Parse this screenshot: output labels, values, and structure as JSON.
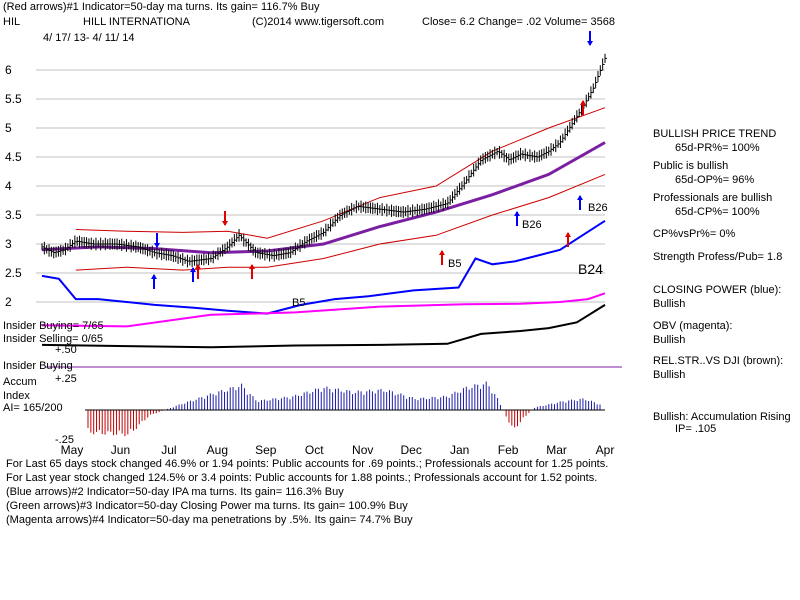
{
  "header": {
    "line1": "(Red arrows)#1 Indicator=50-day ma turns. Its gain= 116.7% Buy",
    "symbol": "HIL",
    "company": "HILL INTERNATIONA",
    "copyright": "(C)2014 www.tigersoft.com",
    "quote": "Close=  6.2  Change= .02 Volume= 3568",
    "date_range": "4/ 17/ 13-  4/ 11/ 14"
  },
  "left_labels": {
    "insider_buying_top": "Insider Buying= 7/65",
    "insider_selling": "Insider Selling= 0/65",
    "plus_50": "+.50",
    "insider_buying_mid": "Insider Buying",
    "accum": "Accum",
    "plus_25": "+.25",
    "index": "Index",
    "ai": "AI= 165/200",
    "minus_25": "-.25"
  },
  "chart_annotations": {
    "b26_upper": "B26",
    "b26_lower": "B26",
    "b5_upper": "B5",
    "b5_lower": "B5",
    "b24": "B24"
  },
  "right_panel": {
    "bullish_trend": "BULLISH PRICE TREND",
    "pr": "65d-PR%= 100%",
    "public_bullish": "Public is bullish",
    "op": "65d-OP%= 96%",
    "prof_bullish": "Professionals are bullish",
    "cp": "65d-CP%= 100%",
    "cpvspr": "CP%vsPr%=  0%",
    "strength": "Strength Profess/Pub= 1.8",
    "closing_power": "CLOSING POWER (blue):",
    "cp_bullish": "Bullish",
    "obv": "OBV (magenta):",
    "obv_bullish": "Bullish",
    "relstr": "REL.STR..VS DJI (brown):",
    "relstr_bullish": "Bullish",
    "accum_rising": "Bullish: Accumulation Rising",
    "ip": "IP=  .105"
  },
  "footer": {
    "line1": "For Last 65 days stock changed  46.9% or  1.94 points:  Public accounts for  .69 points.;  Professionals account for  1.25 points.",
    "line2": "For Last year stock changed  124.5% or  3.4 points:  Public accounts for  1.88 points.;  Professionals account for  1.52 points.",
    "line3": "(Blue arrows)#2 Indicator=50-day IPA ma turns. Its gain= 116.3% Buy",
    "line4": "(Green arrows)#3 Indicator=50-day Closing Power ma turns. Its gain= 100.9% Buy",
    "line5": "(Magenta arrows)#4 Indicator=50-day ma penetrations by .5%. Its gain= 74.7% Buy"
  },
  "colors": {
    "price": "#000000",
    "bands": "#cc0000",
    "ma": "#7b1fa2",
    "closing_power": "#0000ff",
    "obv": "#ff00ff",
    "relstr": "#000000",
    "accum_pos": "#1a1aa8",
    "accum_neg": "#c00000",
    "grid": "#c0c0c0",
    "red_arrow": "#e00000",
    "blue_arrow": "#0000ff"
  },
  "chart_data": {
    "type": "line",
    "title": "HILL INTERNATIONA",
    "x_ticks": [
      "May",
      "Jun",
      "Jul",
      "Aug",
      "Sep",
      "Oct",
      "Nov",
      "Dec",
      "Jan",
      "Feb",
      "Mar",
      "Apr"
    ],
    "y_ticks": [
      "6",
      "5.5",
      "5",
      "4.5",
      "4",
      "3.5",
      "3",
      "2.5",
      "2"
    ],
    "ylim": [
      1.75,
      6.35
    ],
    "grid": true,
    "price_close": [
      {
        "x": 0,
        "y": 2.95
      },
      {
        "x": 0.02,
        "y": 2.85
      },
      {
        "x": 0.04,
        "y": 2.9
      },
      {
        "x": 0.06,
        "y": 3.05
      },
      {
        "x": 0.09,
        "y": 3.0
      },
      {
        "x": 0.13,
        "y": 3.0
      },
      {
        "x": 0.17,
        "y": 2.95
      },
      {
        "x": 0.2,
        "y": 2.85
      },
      {
        "x": 0.23,
        "y": 2.8
      },
      {
        "x": 0.26,
        "y": 2.7
      },
      {
        "x": 0.3,
        "y": 2.75
      },
      {
        "x": 0.33,
        "y": 2.95
      },
      {
        "x": 0.35,
        "y": 3.15
      },
      {
        "x": 0.38,
        "y": 2.85
      },
      {
        "x": 0.41,
        "y": 2.8
      },
      {
        "x": 0.44,
        "y": 2.85
      },
      {
        "x": 0.47,
        "y": 3.05
      },
      {
        "x": 0.5,
        "y": 3.2
      },
      {
        "x": 0.53,
        "y": 3.5
      },
      {
        "x": 0.56,
        "y": 3.65
      },
      {
        "x": 0.6,
        "y": 3.6
      },
      {
        "x": 0.64,
        "y": 3.55
      },
      {
        "x": 0.68,
        "y": 3.6
      },
      {
        "x": 0.72,
        "y": 3.7
      },
      {
        "x": 0.75,
        "y": 4.05
      },
      {
        "x": 0.78,
        "y": 4.45
      },
      {
        "x": 0.81,
        "y": 4.6
      },
      {
        "x": 0.83,
        "y": 4.45
      },
      {
        "x": 0.85,
        "y": 4.55
      },
      {
        "x": 0.88,
        "y": 4.5
      },
      {
        "x": 0.9,
        "y": 4.6
      },
      {
        "x": 0.92,
        "y": 4.75
      },
      {
        "x": 0.94,
        "y": 5.05
      },
      {
        "x": 0.96,
        "y": 5.35
      },
      {
        "x": 0.98,
        "y": 5.7
      },
      {
        "x": 1.0,
        "y": 6.2
      }
    ],
    "ma50": [
      {
        "x": 0.0,
        "y": 2.9
      },
      {
        "x": 0.1,
        "y": 2.95
      },
      {
        "x": 0.2,
        "y": 2.92
      },
      {
        "x": 0.3,
        "y": 2.85
      },
      {
        "x": 0.4,
        "y": 2.88
      },
      {
        "x": 0.5,
        "y": 3.0
      },
      {
        "x": 0.6,
        "y": 3.3
      },
      {
        "x": 0.7,
        "y": 3.55
      },
      {
        "x": 0.8,
        "y": 3.85
      },
      {
        "x": 0.9,
        "y": 4.2
      },
      {
        "x": 1.0,
        "y": 4.75
      }
    ],
    "upper_band": [
      {
        "x": 0.06,
        "y": 3.25
      },
      {
        "x": 0.15,
        "y": 3.22
      },
      {
        "x": 0.25,
        "y": 3.2
      },
      {
        "x": 0.33,
        "y": 3.22
      },
      {
        "x": 0.4,
        "y": 3.1
      },
      {
        "x": 0.5,
        "y": 3.4
      },
      {
        "x": 0.6,
        "y": 3.8
      },
      {
        "x": 0.7,
        "y": 4.0
      },
      {
        "x": 0.8,
        "y": 4.6
      },
      {
        "x": 0.9,
        "y": 5.0
      },
      {
        "x": 1.0,
        "y": 5.35
      }
    ],
    "lower_band": [
      {
        "x": 0.06,
        "y": 2.55
      },
      {
        "x": 0.15,
        "y": 2.6
      },
      {
        "x": 0.25,
        "y": 2.55
      },
      {
        "x": 0.33,
        "y": 2.6
      },
      {
        "x": 0.4,
        "y": 2.6
      },
      {
        "x": 0.5,
        "y": 2.75
      },
      {
        "x": 0.6,
        "y": 3.0
      },
      {
        "x": 0.7,
        "y": 3.15
      },
      {
        "x": 0.8,
        "y": 3.5
      },
      {
        "x": 0.9,
        "y": 3.8
      },
      {
        "x": 1.0,
        "y": 4.2
      }
    ],
    "closing_power": [
      {
        "x": 0.0,
        "y": 2.45
      },
      {
        "x": 0.03,
        "y": 2.4
      },
      {
        "x": 0.06,
        "y": 2.05
      },
      {
        "x": 0.1,
        "y": 2.05
      },
      {
        "x": 0.15,
        "y": 2.0
      },
      {
        "x": 0.2,
        "y": 1.95
      },
      {
        "x": 0.27,
        "y": 1.9
      },
      {
        "x": 0.33,
        "y": 1.85
      },
      {
        "x": 0.4,
        "y": 1.8
      },
      {
        "x": 0.46,
        "y": 1.95
      },
      {
        "x": 0.52,
        "y": 2.05
      },
      {
        "x": 0.58,
        "y": 2.1
      },
      {
        "x": 0.66,
        "y": 2.2
      },
      {
        "x": 0.74,
        "y": 2.25
      },
      {
        "x": 0.77,
        "y": 2.75
      },
      {
        "x": 0.8,
        "y": 2.65
      },
      {
        "x": 0.84,
        "y": 2.7
      },
      {
        "x": 0.88,
        "y": 2.8
      },
      {
        "x": 0.92,
        "y": 2.9
      },
      {
        "x": 0.96,
        "y": 3.15
      },
      {
        "x": 1.0,
        "y": 3.4
      }
    ],
    "obv": [
      {
        "x": 0.0,
        "y": 1.6
      },
      {
        "x": 0.15,
        "y": 1.58
      },
      {
        "x": 0.3,
        "y": 1.78
      },
      {
        "x": 0.45,
        "y": 1.82
      },
      {
        "x": 0.6,
        "y": 1.92
      },
      {
        "x": 0.75,
        "y": 1.96
      },
      {
        "x": 0.85,
        "y": 1.97
      },
      {
        "x": 0.92,
        "y": 2.0
      },
      {
        "x": 0.97,
        "y": 2.05
      },
      {
        "x": 1.0,
        "y": 2.15
      }
    ],
    "rel_strength": [
      {
        "x": 0.0,
        "y": 1.26
      },
      {
        "x": 0.15,
        "y": 1.24
      },
      {
        "x": 0.3,
        "y": 1.22
      },
      {
        "x": 0.45,
        "y": 1.25
      },
      {
        "x": 0.6,
        "y": 1.26
      },
      {
        "x": 0.72,
        "y": 1.28
      },
      {
        "x": 0.78,
        "y": 1.45
      },
      {
        "x": 0.85,
        "y": 1.5
      },
      {
        "x": 0.9,
        "y": 1.55
      },
      {
        "x": 0.95,
        "y": 1.65
      },
      {
        "x": 1.0,
        "y": 1.95
      }
    ],
    "accum_index": [
      {
        "x": 0.0,
        "y": -0.2
      },
      {
        "x": 0.08,
        "y": -0.22
      },
      {
        "x": 0.12,
        "y": -0.05
      },
      {
        "x": 0.18,
        "y": 0.05
      },
      {
        "x": 0.24,
        "y": 0.14
      },
      {
        "x": 0.3,
        "y": 0.22
      },
      {
        "x": 0.33,
        "y": 0.08
      },
      {
        "x": 0.4,
        "y": 0.12
      },
      {
        "x": 0.46,
        "y": 0.2
      },
      {
        "x": 0.52,
        "y": 0.16
      },
      {
        "x": 0.58,
        "y": 0.18
      },
      {
        "x": 0.64,
        "y": 0.1
      },
      {
        "x": 0.7,
        "y": 0.12
      },
      {
        "x": 0.74,
        "y": 0.2
      },
      {
        "x": 0.78,
        "y": 0.24
      },
      {
        "x": 0.8,
        "y": 0.1
      },
      {
        "x": 0.83,
        "y": -0.18
      },
      {
        "x": 0.87,
        "y": 0.02
      },
      {
        "x": 0.9,
        "y": 0.05
      },
      {
        "x": 0.93,
        "y": 0.08
      },
      {
        "x": 0.97,
        "y": 0.1
      },
      {
        "x": 1.0,
        "y": 0.05
      }
    ]
  }
}
